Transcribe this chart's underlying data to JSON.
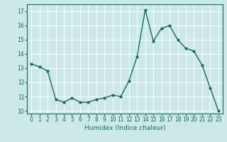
{
  "x": [
    0,
    1,
    2,
    3,
    4,
    5,
    6,
    7,
    8,
    9,
    10,
    11,
    12,
    13,
    14,
    15,
    16,
    17,
    18,
    19,
    20,
    21,
    22,
    23
  ],
  "y": [
    13.3,
    13.1,
    12.8,
    10.8,
    10.6,
    10.9,
    10.6,
    10.6,
    10.8,
    10.9,
    11.1,
    11.0,
    12.1,
    13.8,
    17.1,
    14.9,
    15.8,
    16.0,
    15.0,
    14.4,
    14.2,
    13.2,
    11.6,
    10.0
  ],
  "xlabel": "Humidex (Indice chaleur)",
  "xlim": [
    -0.5,
    23.5
  ],
  "ylim": [
    9.8,
    17.5
  ],
  "yticks": [
    10,
    11,
    12,
    13,
    14,
    15,
    16,
    17
  ],
  "xticks": [
    0,
    1,
    2,
    3,
    4,
    5,
    6,
    7,
    8,
    9,
    10,
    11,
    12,
    13,
    14,
    15,
    16,
    17,
    18,
    19,
    20,
    21,
    22,
    23
  ],
  "line_color": "#1a6b5a",
  "marker_color": "#1a6b5a",
  "bg_color": "#cce8e8",
  "grid_color": "#ffffff",
  "axis_color": "#1a6b5a",
  "label_color": "#1a6b5a",
  "tick_fontsize": 5.5,
  "xlabel_fontsize": 6.5,
  "linewidth": 1.0,
  "markersize": 2.0
}
